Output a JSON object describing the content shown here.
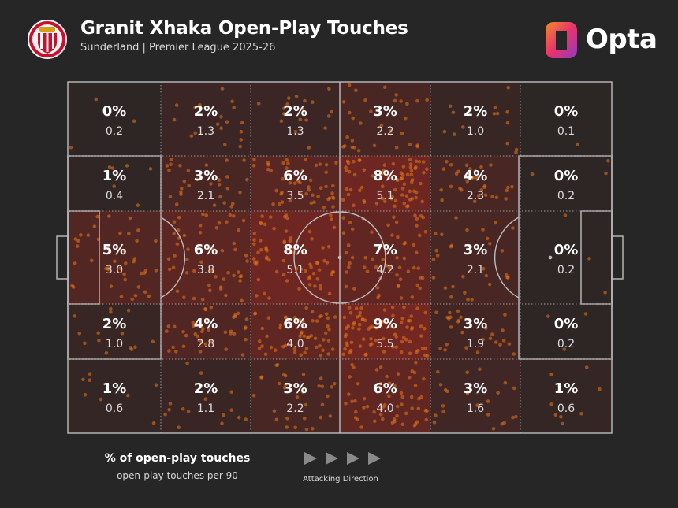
{
  "header": {
    "title": "Granit Xhaka Open-Play Touches",
    "subtitle": "Sunderland | Premier League 2025-26",
    "brand": "Opta",
    "crest_icon": "sunderland-crest-icon",
    "brand_icon": "opta-logo-icon"
  },
  "legend": {
    "primary": "% of open-play touches",
    "secondary": "open-play touches per 90",
    "direction_label": "Attacking Direction",
    "direction_icon": "play-arrow-icon"
  },
  "colors": {
    "background": "#262626",
    "pitch_lines": "#bdbdbd",
    "heat": "#b4281e",
    "dots": "#e8761c"
  },
  "chart_data": {
    "type": "heatmap",
    "rows": 5,
    "cols": 6,
    "attacking_direction": "left-to-right",
    "cells": [
      [
        {
          "pct": "0%",
          "p90": "0.2",
          "v": 0.2
        },
        {
          "pct": "2%",
          "p90": "1.3",
          "v": 1.3
        },
        {
          "pct": "2%",
          "p90": "1.3",
          "v": 1.3
        },
        {
          "pct": "3%",
          "p90": "2.2",
          "v": 2.2
        },
        {
          "pct": "2%",
          "p90": "1.0",
          "v": 1.0
        },
        {
          "pct": "0%",
          "p90": "0.1",
          "v": 0.1
        }
      ],
      [
        {
          "pct": "1%",
          "p90": "0.4",
          "v": 0.4
        },
        {
          "pct": "3%",
          "p90": "2.1",
          "v": 2.1
        },
        {
          "pct": "6%",
          "p90": "3.5",
          "v": 3.5
        },
        {
          "pct": "8%",
          "p90": "5.1",
          "v": 5.1
        },
        {
          "pct": "4%",
          "p90": "2.3",
          "v": 2.3
        },
        {
          "pct": "0%",
          "p90": "0.2",
          "v": 0.2
        }
      ],
      [
        {
          "pct": "5%",
          "p90": "3.0",
          "v": 3.0
        },
        {
          "pct": "6%",
          "p90": "3.8",
          "v": 3.8
        },
        {
          "pct": "8%",
          "p90": "5.1",
          "v": 5.1
        },
        {
          "pct": "7%",
          "p90": "4.2",
          "v": 4.2
        },
        {
          "pct": "3%",
          "p90": "2.1",
          "v": 2.1
        },
        {
          "pct": "0%",
          "p90": "0.2",
          "v": 0.2
        }
      ],
      [
        {
          "pct": "2%",
          "p90": "1.0",
          "v": 1.0
        },
        {
          "pct": "4%",
          "p90": "2.8",
          "v": 2.8
        },
        {
          "pct": "6%",
          "p90": "4.0",
          "v": 4.0
        },
        {
          "pct": "9%",
          "p90": "5.5",
          "v": 5.5
        },
        {
          "pct": "3%",
          "p90": "1.9",
          "v": 1.9
        },
        {
          "pct": "0%",
          "p90": "0.2",
          "v": 0.2
        }
      ],
      [
        {
          "pct": "1%",
          "p90": "0.6",
          "v": 0.6
        },
        {
          "pct": "2%",
          "p90": "1.1",
          "v": 1.1
        },
        {
          "pct": "3%",
          "p90": "2.2",
          "v": 2.2
        },
        {
          "pct": "6%",
          "p90": "4.0",
          "v": 4.0
        },
        {
          "pct": "3%",
          "p90": "1.6",
          "v": 1.6
        },
        {
          "pct": "1%",
          "p90": "0.6",
          "v": 0.6
        }
      ]
    ]
  }
}
